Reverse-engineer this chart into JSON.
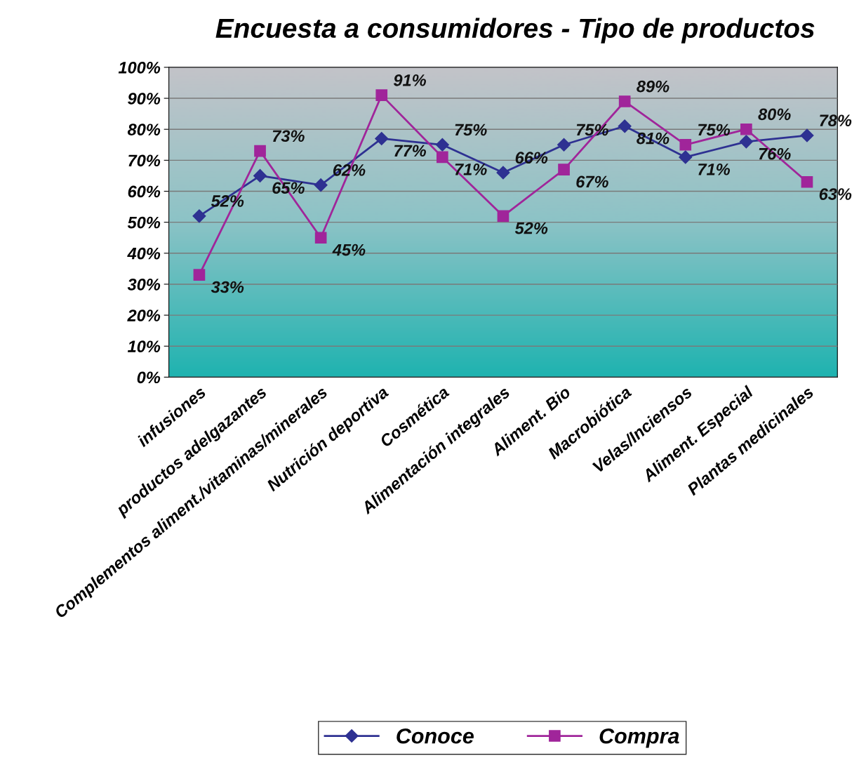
{
  "chart_data": {
    "type": "line",
    "title": "Encuesta a consumidores - Tipo de productos",
    "categories": [
      "infusiones",
      "productos adelgazantes",
      "Complementos aliment./vitaminas/minerales",
      "Nutrición deportiva",
      "Cosmética",
      "Alimentación integrales",
      "Aliment. Bio",
      "Macrobiótica",
      "Velas/Inciensos",
      "Aliment. Especial",
      "Plantas medicinales"
    ],
    "series": [
      {
        "name": "Conoce",
        "color": "#2e3192",
        "marker": "diamond",
        "values": [
          52,
          65,
          62,
          77,
          75,
          66,
          75,
          81,
          71,
          76,
          78
        ],
        "value_labels": [
          "52%",
          "65%",
          "62%",
          "77%",
          "75%",
          "66%",
          "75%",
          "81%",
          "71%",
          "76%",
          "78%"
        ]
      },
      {
        "name": "Compra",
        "color": "#a0259a",
        "marker": "square",
        "values": [
          33,
          73,
          45,
          91,
          71,
          52,
          67,
          89,
          75,
          80,
          63
        ],
        "value_labels": [
          "33%",
          "73%",
          "45%",
          "91%",
          "71%",
          "52%",
          "67%",
          "89%",
          "75%",
          "80%",
          "63%"
        ]
      }
    ],
    "ylim": [
      0,
      100
    ],
    "yticks": [
      {
        "value": 0,
        "label": "0%"
      },
      {
        "value": 10,
        "label": "10%"
      },
      {
        "value": 20,
        "label": "20%"
      },
      {
        "value": 30,
        "label": "30%"
      },
      {
        "value": 40,
        "label": "40%"
      },
      {
        "value": 50,
        "label": "50%"
      },
      {
        "value": 60,
        "label": "60%"
      },
      {
        "value": 70,
        "label": "70%"
      },
      {
        "value": 80,
        "label": "80%"
      },
      {
        "value": 90,
        "label": "90%"
      },
      {
        "value": 100,
        "label": "100%"
      }
    ],
    "grid": "y",
    "legend": "bottom",
    "line_style": "solid"
  }
}
